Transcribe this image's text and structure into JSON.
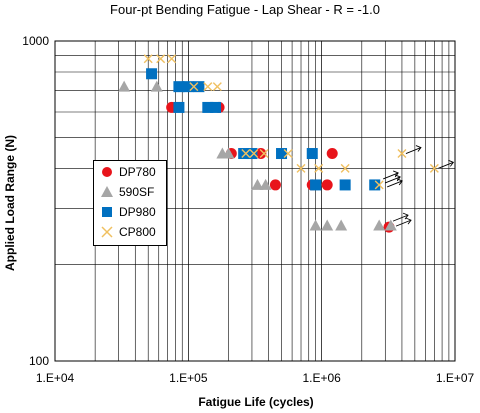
{
  "chart_data": {
    "type": "scatter",
    "title": "Four-pt Bending Fatigue - Lap Shear - R = -1.0",
    "xlabel": "Fatigue Life (cycles)",
    "ylabel": "Applied Load Range (N)",
    "xscale": "log",
    "yscale": "log",
    "xlim": [
      10000,
      10000000
    ],
    "ylim": [
      100,
      1000
    ],
    "x_tick_labels": [
      "1.E+04",
      "1.E+05",
      "1.E+06",
      "1.E+07"
    ],
    "y_tick_labels": [
      "100",
      "1000"
    ],
    "grid": true,
    "legend_position": "left",
    "series": [
      {
        "name": "DP780",
        "marker": "circle",
        "color": "#e8141b",
        "points": [
          [
            75000,
            620
          ],
          [
            170000,
            620
          ],
          [
            210000,
            445
          ],
          [
            350000,
            445
          ],
          [
            450000,
            355
          ],
          [
            850000,
            355
          ],
          [
            1100000,
            355
          ],
          [
            1200000,
            445
          ],
          [
            3200000,
            262
          ]
        ]
      },
      {
        "name": "590SF",
        "marker": "triangle",
        "color": "#a6a6a6",
        "points": [
          [
            33000,
            720
          ],
          [
            58000,
            720
          ],
          [
            180000,
            445
          ],
          [
            200000,
            445
          ],
          [
            330000,
            355
          ],
          [
            380000,
            355
          ],
          [
            900000,
            265
          ],
          [
            1100000,
            265
          ],
          [
            1400000,
            265
          ],
          [
            2700000,
            265
          ],
          [
            3300000,
            265
          ]
        ]
      },
      {
        "name": "DP980",
        "marker": "square",
        "color": "#0070c0",
        "points": [
          [
            53000,
            790
          ],
          [
            85000,
            720
          ],
          [
            100000,
            720
          ],
          [
            120000,
            720
          ],
          [
            85000,
            620
          ],
          [
            140000,
            620
          ],
          [
            160000,
            620
          ],
          [
            260000,
            445
          ],
          [
            300000,
            445
          ],
          [
            500000,
            445
          ],
          [
            850000,
            445
          ],
          [
            900000,
            355
          ],
          [
            1500000,
            355
          ],
          [
            2500000,
            355
          ]
        ]
      },
      {
        "name": "CP800",
        "marker": "x",
        "color": "#f0c060",
        "points": [
          [
            50000,
            880
          ],
          [
            62000,
            880
          ],
          [
            75000,
            880
          ],
          [
            110000,
            720
          ],
          [
            140000,
            720
          ],
          [
            165000,
            720
          ],
          [
            270000,
            445
          ],
          [
            310000,
            445
          ],
          [
            370000,
            445
          ],
          [
            560000,
            445
          ],
          [
            700000,
            400
          ],
          [
            950000,
            400
          ],
          [
            1500000,
            400
          ],
          [
            2700000,
            355
          ],
          [
            4000000,
            445
          ],
          [
            7000000,
            400
          ]
        ]
      }
    ],
    "runouts": [
      [
        2700000,
        355
      ],
      [
        2700000,
        355
      ],
      [
        2700000,
        355
      ],
      [
        3200000,
        262
      ],
      [
        3200000,
        262
      ],
      [
        4000000,
        445
      ],
      [
        7000000,
        400
      ]
    ]
  }
}
